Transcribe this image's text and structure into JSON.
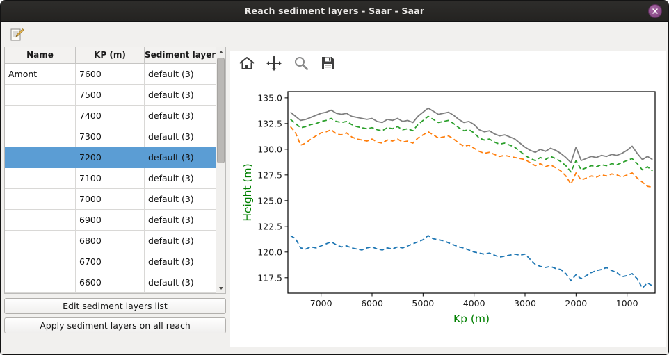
{
  "window": {
    "title": "Reach sediment layers - Saar - Saar"
  },
  "icons": {
    "titlebar": [
      "close-icon"
    ],
    "main_toolbar": [
      "edit-note-icon"
    ],
    "plot_toolbar": [
      "home-icon",
      "pan-icon",
      "zoom-icon",
      "save-icon"
    ],
    "table_scrollbar": [
      "scroll-up-arrow-icon",
      "scroll-down-arrow-icon"
    ]
  },
  "colors": {
    "selection": "#5b9dd4",
    "close_button": "#8a4788",
    "axis_label": "#008000"
  },
  "table": {
    "columns": [
      "Name",
      "KP (m)",
      "Sediment layers"
    ],
    "selected_index": 4,
    "rows": [
      {
        "name": "Amont",
        "kp": "7600",
        "layers": "default (3)"
      },
      {
        "name": "",
        "kp": "7500",
        "layers": "default (3)"
      },
      {
        "name": "",
        "kp": "7400",
        "layers": "default (3)"
      },
      {
        "name": "",
        "kp": "7300",
        "layers": "default (3)"
      },
      {
        "name": "",
        "kp": "7200",
        "layers": "default (3)"
      },
      {
        "name": "",
        "kp": "7100",
        "layers": "default (3)"
      },
      {
        "name": "",
        "kp": "7000",
        "layers": "default (3)"
      },
      {
        "name": "",
        "kp": "6900",
        "layers": "default (3)"
      },
      {
        "name": "",
        "kp": "6800",
        "layers": "default (3)"
      },
      {
        "name": "",
        "kp": "6700",
        "layers": "default (3)"
      },
      {
        "name": "",
        "kp": "6600",
        "layers": "default (3)"
      }
    ]
  },
  "buttons": {
    "edit": "Edit sediment layers list",
    "apply": "Apply sediment layers on all reach"
  },
  "chart_data": {
    "type": "line",
    "title": "",
    "xlabel": "Kp (m)",
    "ylabel": "Height (m)",
    "axis_label_color": "#008000",
    "x_reversed": true,
    "xlim": [
      7650,
      450
    ],
    "ylim": [
      116.0,
      135.6
    ],
    "xticks": [
      7000,
      6000,
      5000,
      4000,
      3000,
      2000,
      1000
    ],
    "yticks": [
      117.5,
      120.0,
      122.5,
      125.0,
      127.5,
      130.0,
      132.5,
      135.0
    ],
    "grid": false,
    "legend": "none",
    "x": [
      7600,
      7500,
      7400,
      7300,
      7200,
      7100,
      7000,
      6900,
      6800,
      6700,
      6600,
      6500,
      6400,
      6300,
      6200,
      6100,
      6000,
      5900,
      5800,
      5700,
      5600,
      5500,
      5400,
      5300,
      5200,
      5100,
      5000,
      4900,
      4800,
      4700,
      4600,
      4500,
      4400,
      4300,
      4200,
      4100,
      4000,
      3900,
      3800,
      3700,
      3600,
      3500,
      3400,
      3300,
      3200,
      3100,
      3000,
      2900,
      2800,
      2700,
      2600,
      2500,
      2400,
      2300,
      2200,
      2100,
      2000,
      1900,
      1800,
      1700,
      1600,
      1500,
      1400,
      1300,
      1200,
      1100,
      1000,
      900,
      800,
      700,
      600,
      500
    ],
    "series": [
      {
        "name": "blue-dashed",
        "color": "#1f77b4",
        "style": "dashed",
        "values": [
          121.6,
          121.3,
          120.4,
          120.3,
          120.5,
          120.4,
          120.6,
          120.8,
          121.0,
          120.7,
          120.5,
          120.6,
          120.4,
          120.3,
          120.2,
          120.4,
          120.5,
          120.3,
          120.2,
          120.4,
          120.3,
          120.5,
          120.4,
          120.6,
          120.8,
          121.0,
          121.2,
          121.6,
          121.3,
          121.2,
          121.1,
          120.9,
          120.7,
          120.5,
          120.4,
          120.2,
          120.0,
          119.9,
          119.8,
          119.9,
          119.7,
          119.5,
          119.6,
          119.7,
          119.8,
          119.7,
          119.8,
          119.3,
          118.8,
          118.6,
          118.5,
          118.6,
          118.4,
          118.3,
          117.9,
          117.2,
          117.8,
          117.4,
          117.7,
          118.0,
          118.2,
          118.3,
          118.5,
          118.2,
          118.0,
          117.6,
          117.7,
          117.9,
          117.4,
          116.5,
          117.0,
          116.7
        ]
      },
      {
        "name": "orange-dashed",
        "color": "#ff7f0e",
        "style": "dashed",
        "values": [
          132.2,
          131.6,
          130.4,
          130.6,
          131.0,
          131.3,
          131.6,
          131.7,
          131.9,
          131.5,
          131.4,
          131.6,
          131.2,
          131.0,
          130.9,
          130.8,
          131.0,
          130.7,
          130.6,
          130.9,
          130.8,
          131.0,
          130.7,
          130.8,
          130.6,
          131.1,
          131.4,
          131.7,
          131.4,
          131.1,
          131.2,
          131.3,
          131.0,
          130.6,
          130.3,
          130.4,
          130.1,
          129.8,
          129.6,
          129.7,
          129.5,
          129.3,
          129.4,
          129.3,
          129.2,
          129.1,
          129.0,
          128.7,
          128.4,
          128.6,
          128.3,
          128.5,
          128.2,
          127.9,
          127.4,
          126.6,
          127.7,
          127.0,
          127.2,
          127.4,
          127.3,
          127.5,
          127.4,
          127.6,
          127.5,
          127.3,
          127.5,
          127.7,
          127.2,
          126.8,
          126.4,
          126.3
        ]
      },
      {
        "name": "green-dashed",
        "color": "#2ca02c",
        "style": "dashed",
        "values": [
          132.9,
          132.5,
          132.1,
          132.2,
          132.4,
          132.5,
          132.7,
          132.8,
          133.0,
          132.7,
          132.6,
          132.7,
          132.4,
          132.2,
          132.1,
          132.0,
          132.1,
          131.9,
          131.8,
          132.1,
          132.0,
          132.2,
          131.9,
          132.0,
          131.8,
          132.4,
          132.8,
          133.2,
          132.9,
          132.6,
          132.7,
          132.8,
          132.5,
          132.1,
          131.8,
          131.9,
          131.6,
          131.1,
          130.9,
          131.0,
          130.7,
          130.5,
          130.6,
          130.4,
          130.2,
          129.8,
          129.4,
          129.1,
          128.9,
          129.2,
          129.0,
          129.3,
          129.1,
          128.8,
          128.4,
          127.8,
          128.9,
          128.0,
          128.2,
          128.4,
          128.3,
          128.5,
          128.4,
          128.6,
          128.5,
          128.7,
          128.9,
          129.1,
          128.6,
          128.0,
          128.3,
          127.9
        ]
      },
      {
        "name": "gray-solid",
        "color": "#7f7f7f",
        "style": "solid",
        "values": [
          133.6,
          133.2,
          132.8,
          132.9,
          133.1,
          133.3,
          133.5,
          133.6,
          133.8,
          133.5,
          133.4,
          133.5,
          133.2,
          133.1,
          133.0,
          132.9,
          133.0,
          132.7,
          132.6,
          132.9,
          132.8,
          133.0,
          132.7,
          132.8,
          132.6,
          133.2,
          133.6,
          134.0,
          133.7,
          133.4,
          133.5,
          133.6,
          133.3,
          132.9,
          132.6,
          132.7,
          132.4,
          131.9,
          131.7,
          131.8,
          131.5,
          131.3,
          131.4,
          131.2,
          131.0,
          130.6,
          130.2,
          129.9,
          129.7,
          130.0,
          129.8,
          130.1,
          129.9,
          129.6,
          129.2,
          128.7,
          130.2,
          128.9,
          129.1,
          129.3,
          129.2,
          129.4,
          129.3,
          129.5,
          129.4,
          129.6,
          129.9,
          130.3,
          129.6,
          129.0,
          129.3,
          129.0
        ]
      }
    ]
  }
}
